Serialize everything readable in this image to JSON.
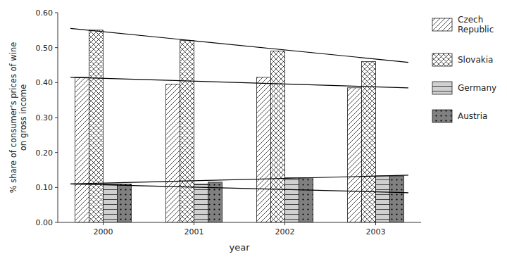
{
  "chart_data": {
    "type": "bar",
    "categories": [
      "2000",
      "2001",
      "2002",
      "2003"
    ],
    "series": [
      {
        "name": "Czech\nRepublic",
        "color": "#ffffff",
        "values": [
          0.415,
          0.395,
          0.415,
          0.385
        ],
        "trend": [
          0.415,
          0.385
        ]
      },
      {
        "name": "Slovakia",
        "color": "#ffffff",
        "values": [
          0.55,
          0.52,
          0.49,
          0.46
        ],
        "trend": [
          0.555,
          0.458
        ]
      },
      {
        "name": "Germany",
        "color": "#d0d0d0",
        "values": [
          0.11,
          0.11,
          0.128,
          0.133
        ],
        "trend": [
          0.11,
          0.085
        ]
      },
      {
        "name": "Austria",
        "color": "#808080",
        "values": [
          0.11,
          0.115,
          0.128,
          0.133
        ],
        "trend": [
          0.11,
          0.135
        ]
      }
    ],
    "xlabel": "year",
    "ylabel": "% share of consumer's prices of wine\non gross income",
    "ylim": [
      0.0,
      0.6
    ],
    "yticks": [
      {
        "value": 0.0,
        "label": "0.00"
      },
      {
        "value": 0.1,
        "label": "0.10"
      },
      {
        "value": 0.2,
        "label": "0.20"
      },
      {
        "value": 0.3,
        "label": "0.30"
      },
      {
        "value": 0.4,
        "label": "0.40"
      },
      {
        "value": 0.5,
        "label": "0.50"
      },
      {
        "value": 0.6,
        "label": "0.60"
      }
    ],
    "grid": false,
    "legend": "right"
  }
}
